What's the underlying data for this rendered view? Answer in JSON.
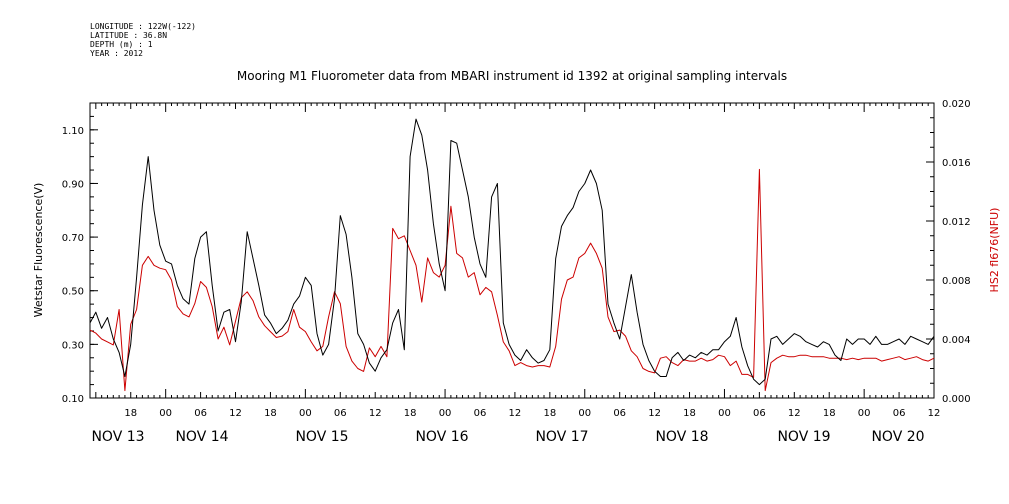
{
  "header": {
    "longitude": "LONGITUDE : 122W(-122)",
    "latitude": "LATITUDE : 36.8N",
    "depth": "DEPTH (m) : 1",
    "year": "YEAR : 2012"
  },
  "chart_data": {
    "type": "line",
    "title": "Mooring M1 Fluorometer data from MBARI instrument id 1392 at original sampling intervals",
    "ylabel_left": "Wetstar Fluorescence(V)",
    "ylabel_right": "HS2 fl676(NFU)",
    "ylim_left": [
      0.1,
      1.2
    ],
    "ylim_right": [
      0.0,
      0.02
    ],
    "yticks_left": [
      "0.10",
      "0.30",
      "0.50",
      "0.70",
      "0.90",
      "1.10"
    ],
    "yticks_right": [
      "0.000",
      "0.004",
      "0.008",
      "0.012",
      "0.016",
      "0.020"
    ],
    "x_units": "hours since NOV 13 00:00",
    "xlim": [
      11,
      156
    ],
    "hour_ticks": [
      {
        "x": 18,
        "label": "18"
      },
      {
        "x": 24,
        "label": "00"
      },
      {
        "x": 30,
        "label": "06"
      },
      {
        "x": 36,
        "label": "12"
      },
      {
        "x": 42,
        "label": "18"
      },
      {
        "x": 48,
        "label": "00"
      },
      {
        "x": 54,
        "label": "06"
      },
      {
        "x": 60,
        "label": "12"
      },
      {
        "x": 66,
        "label": "18"
      },
      {
        "x": 72,
        "label": "00"
      },
      {
        "x": 78,
        "label": "06"
      },
      {
        "x": 84,
        "label": "12"
      },
      {
        "x": 90,
        "label": "18"
      },
      {
        "x": 96,
        "label": "00"
      },
      {
        "x": 102,
        "label": "06"
      },
      {
        "x": 108,
        "label": "12"
      },
      {
        "x": 114,
        "label": "18"
      },
      {
        "x": 120,
        "label": "00"
      },
      {
        "x": 126,
        "label": "06"
      },
      {
        "x": 132,
        "label": "12"
      },
      {
        "x": 138,
        "label": "18"
      },
      {
        "x": 144,
        "label": "00"
      },
      {
        "x": 150,
        "label": "06"
      },
      {
        "x": 156,
        "label": "12"
      }
    ],
    "day_labels": [
      {
        "x": 12,
        "label": "NOV 13"
      },
      {
        "x": 36,
        "label": "NOV 14"
      },
      {
        "x": 60,
        "label": "NOV 15"
      },
      {
        "x": 84,
        "label": "NOV 16"
      },
      {
        "x": 108,
        "label": "NOV 17"
      },
      {
        "x": 132,
        "label": "NOV 18"
      },
      {
        "x": 156,
        "label": "NOV 19"
      },
      {
        "x": 175,
        "label": "NOV 20"
      }
    ],
    "series": [
      {
        "axis": "left",
        "color": "#000000",
        "x": [
          11,
          12,
          13,
          14,
          15,
          16,
          17,
          18,
          19,
          20,
          21,
          22,
          23,
          24,
          25,
          26,
          27,
          28,
          29,
          30,
          31,
          32,
          33,
          34,
          35,
          36,
          37,
          38,
          39,
          40,
          41,
          42,
          43,
          44,
          45,
          46,
          47,
          48,
          49,
          50,
          51,
          52,
          53,
          54,
          55,
          56,
          57,
          58,
          59,
          60,
          61,
          62,
          63,
          64,
          65,
          66,
          67,
          68,
          69,
          70,
          71,
          72,
          73,
          74,
          75,
          76,
          77,
          78,
          79,
          80,
          81,
          82,
          83,
          84,
          85,
          86,
          87,
          88,
          89,
          90,
          91,
          92,
          93,
          94,
          95,
          96,
          97,
          98,
          99,
          100,
          101,
          102,
          103,
          104,
          105,
          106,
          107,
          108,
          109,
          110,
          111,
          112,
          113,
          114,
          115,
          116,
          117,
          118,
          119,
          120,
          121,
          122,
          123,
          124,
          125,
          126,
          127,
          128,
          129,
          130,
          131,
          132,
          133,
          134,
          135,
          136,
          137,
          138,
          139,
          140,
          141,
          142,
          143,
          144,
          145,
          146,
          147,
          148,
          149,
          150,
          151,
          152,
          153,
          154,
          155,
          156
        ],
        "y": [
          0.38,
          0.42,
          0.36,
          0.4,
          0.32,
          0.27,
          0.18,
          0.3,
          0.55,
          0.82,
          1.0,
          0.8,
          0.67,
          0.61,
          0.6,
          0.52,
          0.47,
          0.45,
          0.62,
          0.7,
          0.72,
          0.52,
          0.35,
          0.42,
          0.43,
          0.31,
          0.46,
          0.72,
          0.62,
          0.52,
          0.41,
          0.38,
          0.34,
          0.36,
          0.39,
          0.45,
          0.48,
          0.55,
          0.52,
          0.34,
          0.26,
          0.3,
          0.47,
          0.78,
          0.71,
          0.55,
          0.34,
          0.3,
          0.23,
          0.2,
          0.25,
          0.28,
          0.38,
          0.43,
          0.28,
          1.0,
          1.14,
          1.08,
          0.95,
          0.75,
          0.6,
          0.5,
          1.06,
          1.05,
          0.95,
          0.85,
          0.7,
          0.6,
          0.55,
          0.85,
          0.9,
          0.38,
          0.3,
          0.26,
          0.24,
          0.28,
          0.25,
          0.23,
          0.24,
          0.28,
          0.62,
          0.74,
          0.78,
          0.81,
          0.87,
          0.9,
          0.95,
          0.9,
          0.8,
          0.45,
          0.38,
          0.32,
          0.44,
          0.56,
          0.42,
          0.3,
          0.24,
          0.2,
          0.18,
          0.18,
          0.25,
          0.27,
          0.24,
          0.26,
          0.25,
          0.27,
          0.26,
          0.28,
          0.28,
          0.31,
          0.33,
          0.4,
          0.29,
          0.22,
          0.17,
          0.15,
          0.17,
          0.32,
          0.33,
          0.3,
          0.32,
          0.34,
          0.33,
          0.31,
          0.3,
          0.29,
          0.31,
          0.3,
          0.26,
          0.24,
          0.32,
          0.3,
          0.32,
          0.32,
          0.3,
          0.33,
          0.3,
          0.3,
          0.31,
          0.32,
          0.3,
          0.33,
          0.32,
          0.31,
          0.3,
          0.33
        ]
      },
      {
        "axis": "right",
        "color": "#cc0000",
        "x": [
          11,
          12,
          13,
          14,
          15,
          16,
          17,
          18,
          19,
          20,
          21,
          22,
          23,
          24,
          25,
          26,
          27,
          28,
          29,
          30,
          31,
          32,
          33,
          34,
          35,
          36,
          37,
          38,
          39,
          40,
          41,
          42,
          43,
          44,
          45,
          46,
          47,
          48,
          49,
          50,
          51,
          52,
          53,
          54,
          55,
          56,
          57,
          58,
          59,
          60,
          61,
          62,
          63,
          64,
          65,
          66,
          67,
          68,
          69,
          70,
          71,
          72,
          73,
          74,
          75,
          76,
          77,
          78,
          79,
          80,
          81,
          82,
          83,
          84,
          85,
          86,
          87,
          88,
          89,
          90,
          91,
          92,
          93,
          94,
          95,
          96,
          97,
          98,
          99,
          100,
          101,
          102,
          103,
          104,
          105,
          106,
          107,
          108,
          109,
          110,
          111,
          112,
          113,
          114,
          115,
          116,
          117,
          118,
          119,
          120,
          121,
          122,
          123,
          124,
          125,
          126,
          127,
          128,
          129,
          130,
          131,
          132,
          133,
          134,
          135,
          136,
          137,
          138,
          139,
          140,
          141,
          142,
          143,
          144,
          145,
          146,
          147,
          148,
          149,
          150,
          151,
          152,
          153,
          154,
          155,
          156
        ],
        "y": [
          0.0046,
          0.0044,
          0.004,
          0.0038,
          0.0036,
          0.006,
          0.0005,
          0.005,
          0.006,
          0.009,
          0.0096,
          0.009,
          0.0088,
          0.0087,
          0.008,
          0.0062,
          0.0057,
          0.0055,
          0.0064,
          0.0079,
          0.0075,
          0.0062,
          0.004,
          0.0048,
          0.0036,
          0.0052,
          0.0068,
          0.0072,
          0.0066,
          0.0055,
          0.0049,
          0.0045,
          0.0041,
          0.0042,
          0.0045,
          0.006,
          0.0048,
          0.0045,
          0.0038,
          0.0032,
          0.0035,
          0.0055,
          0.0072,
          0.0064,
          0.0035,
          0.0025,
          0.002,
          0.0018,
          0.0034,
          0.0028,
          0.0035,
          0.0028,
          0.0115,
          0.0108,
          0.011,
          0.01,
          0.009,
          0.0065,
          0.0095,
          0.0085,
          0.0082,
          0.009,
          0.013,
          0.0098,
          0.0095,
          0.0082,
          0.0085,
          0.007,
          0.0075,
          0.0072,
          0.0056,
          0.0038,
          0.0032,
          0.0022,
          0.0024,
          0.0022,
          0.0021,
          0.0022,
          0.0022,
          0.0021,
          0.0035,
          0.0067,
          0.008,
          0.0082,
          0.0095,
          0.0098,
          0.0105,
          0.0098,
          0.0088,
          0.0055,
          0.0045,
          0.0046,
          0.0042,
          0.0032,
          0.0028,
          0.002,
          0.0018,
          0.0017,
          0.0027,
          0.0028,
          0.0024,
          0.0022,
          0.0026,
          0.0025,
          0.0025,
          0.0027,
          0.0025,
          0.0026,
          0.0029,
          0.0028,
          0.0022,
          0.0025,
          0.0016,
          0.0016,
          0.0014,
          0.0155,
          0.0005,
          0.0024,
          0.0027,
          0.0029,
          0.0028,
          0.0028,
          0.0029,
          0.0029,
          0.0028,
          0.0028,
          0.0028,
          0.0027,
          0.0027,
          0.0027,
          0.0026,
          0.0027,
          0.0026,
          0.0027,
          0.0027,
          0.0027,
          0.0025,
          0.0026,
          0.0027,
          0.0028,
          0.0026,
          0.0027,
          0.0028,
          0.0026,
          0.0025,
          0.0027
        ]
      }
    ]
  }
}
